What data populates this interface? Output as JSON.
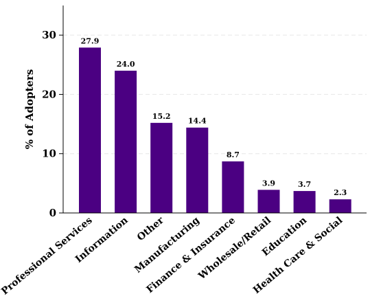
{
  "chart_data": {
    "type": "bar",
    "categories": [
      "Professional Services",
      "Information",
      "Other",
      "Manufacturing",
      "Finance & Insurance",
      "Wholesale/Retail",
      "Education",
      "Health Care & Social"
    ],
    "values": [
      27.9,
      24.0,
      15.2,
      14.4,
      8.7,
      3.9,
      3.7,
      2.3
    ],
    "value_labels": [
      "27.9",
      "24.0",
      "15.2",
      "14.4",
      "8.7",
      "3.9",
      "3.7",
      "2.3"
    ],
    "title": "",
    "xlabel": "",
    "ylabel": "% of Adopters",
    "ylim": [
      0,
      35
    ],
    "yticks": [
      0,
      10,
      20,
      30
    ],
    "grid": true,
    "bar_color": "#4b0082"
  }
}
